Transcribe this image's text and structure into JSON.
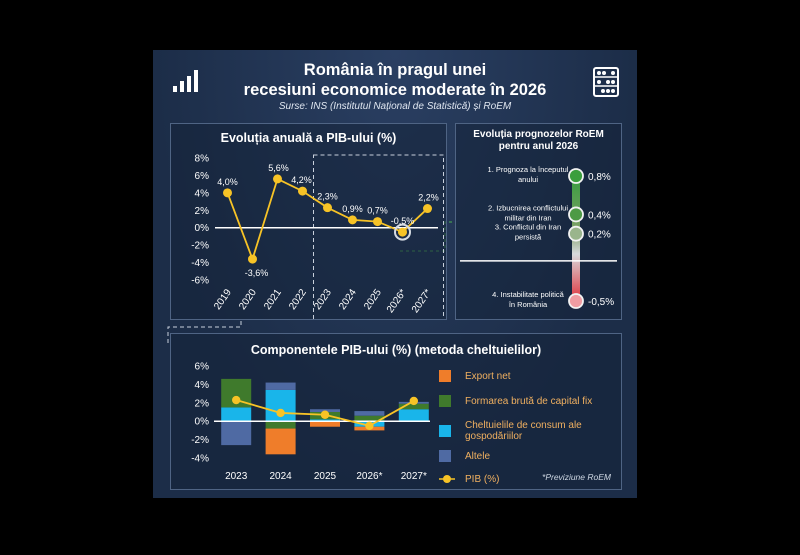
{
  "header": {
    "title_line1": "România în pragul unei",
    "title_line2": "recesiuni economice moderate în 2026",
    "source": "Surse: INS (Institutul Național de Statistică) și RoEM",
    "left_icon": "bar-signal-icon",
    "right_icon": "abacus-icon"
  },
  "colors": {
    "background": "#1c2d48",
    "gdp_line": "#f7c326",
    "export_net": "#ef7d2a",
    "capital": "#3f7a2c",
    "consumption": "#19b5ea",
    "other": "#4f6aa3"
  },
  "chart_data": [
    {
      "type": "line",
      "title": "Evoluția anuală a PIB-ului (%)",
      "categories": [
        "2019",
        "2020",
        "2021",
        "2022",
        "2023",
        "2024",
        "2025",
        "2026*",
        "2027*"
      ],
      "values": [
        4.0,
        -3.6,
        5.6,
        4.2,
        2.3,
        0.9,
        0.7,
        -0.5,
        2.2
      ],
      "data_labels": [
        "4,0%",
        "-3,6%",
        "5,6%",
        "4,2%",
        "2,3%",
        "0,9%",
        "0,7%",
        "-0,5%",
        "2,2%"
      ],
      "y_ticks": [
        "8%",
        "6%",
        "4%",
        "2%",
        "0%",
        "-2%",
        "-4%",
        "-6%"
      ],
      "ylim": [
        -6,
        8
      ]
    },
    {
      "type": "line",
      "title_line1": "Evoluția prognozelor RoEM",
      "title_line2": "pentru anul 2026",
      "points": [
        {
          "label_lines": [
            "1. Prognoza la începutul",
            "anului"
          ],
          "value": 0.8,
          "value_label": "0,8%"
        },
        {
          "label_lines": [
            "2. Izbucnirea conflictului",
            "militar din Iran"
          ],
          "value": 0.4,
          "value_label": "0,4%"
        },
        {
          "label_lines": [
            "3. Conflictul din Iran",
            "persistă"
          ],
          "value": 0.2,
          "value_label": "0,2%"
        },
        {
          "label_lines": [
            "4. Instabilitate politică",
            "în România"
          ],
          "value": -0.5,
          "value_label": "-0,5%"
        }
      ]
    },
    {
      "type": "bar",
      "title": "Componentele PIB-ului (%) (metoda cheltuielilor)",
      "categories": [
        "2023",
        "2024",
        "2025",
        "2026*",
        "2027*"
      ],
      "y_ticks": [
        "6%",
        "4%",
        "2%",
        "0%",
        "-2%",
        "-4%"
      ],
      "ylim": [
        -4,
        6
      ],
      "series": [
        {
          "name": "Export net",
          "values": [
            0.0,
            -2.8,
            -0.6,
            -0.4,
            0.0
          ]
        },
        {
          "name": "Formarea brută de capital fix",
          "values": [
            3.1,
            -0.8,
            0.8,
            0.6,
            0.6
          ]
        },
        {
          "name": "Cheltuielile de consum ale gospodăriilor",
          "values": [
            1.5,
            3.4,
            0.2,
            -0.6,
            1.3
          ]
        },
        {
          "name": "Altele",
          "values": [
            -2.6,
            0.8,
            0.3,
            0.5,
            0.2
          ]
        }
      ],
      "gdp_series": {
        "name": "PIB (%)",
        "values": [
          2.3,
          0.9,
          0.7,
          -0.5,
          2.2
        ]
      },
      "footnote": "*Previziune RoEM"
    }
  ]
}
